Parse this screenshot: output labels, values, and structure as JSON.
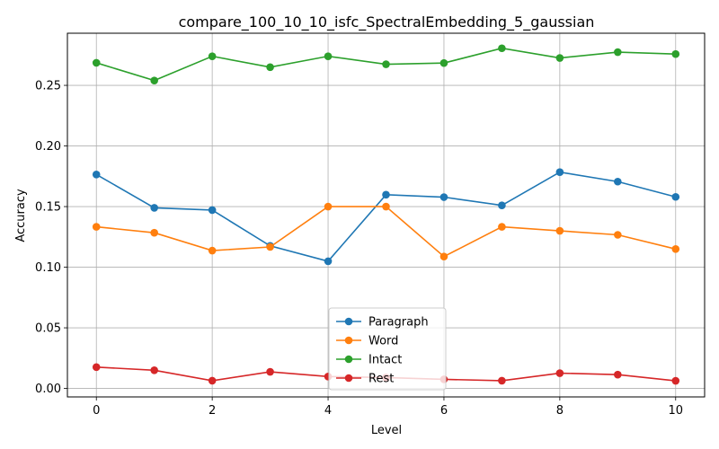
{
  "chart_data": {
    "type": "line",
    "title": "compare_100_10_10_isfc_SpectralEmbedding_5_gaussian",
    "xlabel": "Level",
    "ylabel": "Accuracy",
    "x": [
      0,
      1,
      2,
      3,
      4,
      5,
      6,
      7,
      8,
      9,
      10
    ],
    "xlim": [
      -0.5,
      10.5
    ],
    "ylim": [
      -0.007,
      0.293
    ],
    "xticks": [
      0,
      2,
      4,
      6,
      8,
      10
    ],
    "xtick_labels": [
      "0",
      "2",
      "4",
      "6",
      "8",
      "10"
    ],
    "yticks": [
      0.0,
      0.05,
      0.1,
      0.15,
      0.2,
      0.25
    ],
    "ytick_labels": [
      "0.00",
      "0.05",
      "0.10",
      "0.15",
      "0.20",
      "0.25"
    ],
    "grid": true,
    "legend_position": "bottom-center",
    "series": [
      {
        "name": "Paragraph",
        "color": "#1f77b4",
        "values": [
          0.1765,
          0.149,
          0.1471,
          0.1176,
          0.1049,
          0.1598,
          0.1578,
          0.151,
          0.1784,
          0.1706,
          0.158
        ]
      },
      {
        "name": "Word",
        "color": "#ff7f0e",
        "values": [
          0.1333,
          0.1284,
          0.1137,
          0.1167,
          0.15,
          0.15,
          0.1088,
          0.1333,
          0.13,
          0.1267,
          0.115
        ]
      },
      {
        "name": "Intact",
        "color": "#2ca02c",
        "values": [
          0.2686,
          0.254,
          0.274,
          0.265,
          0.274,
          0.2674,
          0.2684,
          0.2806,
          0.2726,
          0.2774,
          0.2758
        ]
      },
      {
        "name": "Rest",
        "color": "#d62728",
        "values": [
          0.0176,
          0.015,
          0.0064,
          0.0137,
          0.0098,
          0.009,
          0.0075,
          0.0064,
          0.0126,
          0.0114,
          0.0063
        ]
      }
    ]
  }
}
